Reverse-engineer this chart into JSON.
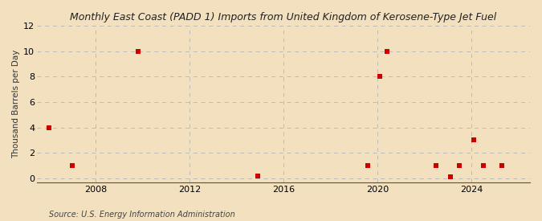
{
  "title": "East Coast (PADD 1) Imports from United Kingdom of Kerosene-Type Jet Fuel",
  "title_prefix": "Monthly ",
  "ylabel": "Thousand Barrels per Day",
  "source": "Source: U.S. Energy Information Administration",
  "background_color": "#f2e0be",
  "plot_background_color": "#f2e0be",
  "marker_color": "#cc0000",
  "marker_size": 16,
  "xlim_left": 2005.5,
  "xlim_right": 2026.5,
  "ylim_bottom": -0.3,
  "ylim_top": 12,
  "yticks": [
    0,
    2,
    4,
    6,
    8,
    10,
    12
  ],
  "xticks": [
    2008,
    2012,
    2016,
    2020,
    2024
  ],
  "data_x": [
    2006.0,
    2007.0,
    2009.8,
    2014.9,
    2019.6,
    2020.1,
    2020.4,
    2022.5,
    2023.1,
    2023.5,
    2024.1,
    2024.5,
    2025.3
  ],
  "data_y": [
    4,
    1,
    10,
    0.15,
    1,
    8,
    10,
    1,
    0.1,
    1,
    3,
    1,
    1
  ],
  "grid_color": "#bbbbbb",
  "grid_linestyle": "--",
  "title_fontsize": 9,
  "ylabel_fontsize": 7.5,
  "tick_fontsize": 8,
  "source_fontsize": 7
}
